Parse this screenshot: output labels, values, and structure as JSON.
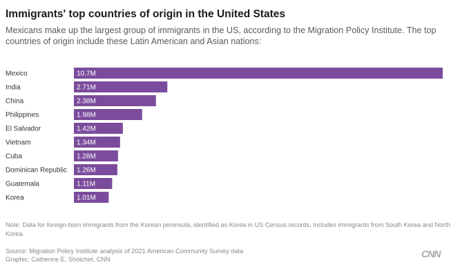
{
  "header": {
    "title": "Immigrants' top countries of origin in the United States",
    "subtitle": "Mexicans make up the largest group of immigrants in the US, according to the Migration Policy Institute. The top countries of origin include these Latin American and Asian nations:"
  },
  "chart_data": {
    "type": "bar",
    "orientation": "horizontal",
    "categories": [
      "Mexico",
      "India",
      "China",
      "Philippines",
      "El Salvador",
      "Vietnam",
      "Cuba",
      "Dominican Republic",
      "Guatemala",
      "Korea"
    ],
    "values": [
      10.7,
      2.71,
      2.38,
      1.98,
      1.42,
      1.34,
      1.28,
      1.26,
      1.11,
      1.01
    ],
    "value_labels": [
      "10.7M",
      "2.71M",
      "2.38M",
      "1.98M",
      "1.42M",
      "1.34M",
      "1.28M",
      "1.26M",
      "1.11M",
      "1.01M"
    ],
    "unit": "M",
    "xlim": [
      0,
      10.7
    ],
    "bar_color": "#7b4c9c",
    "label_color": "#ffffff",
    "grid": false,
    "legend": "none"
  },
  "footer": {
    "note": "Note: Data for foreign-born immigrants from the Korean peninsula, identified as Korea in US Census records, includes immigrants from South Korea and North Korea.",
    "source": "Source: Migration Policy Institute analysis of 2021 American Community Survey data",
    "credit": "Graphic: Catherine E. Shoichet, CNN",
    "logo_text": "CNN"
  }
}
